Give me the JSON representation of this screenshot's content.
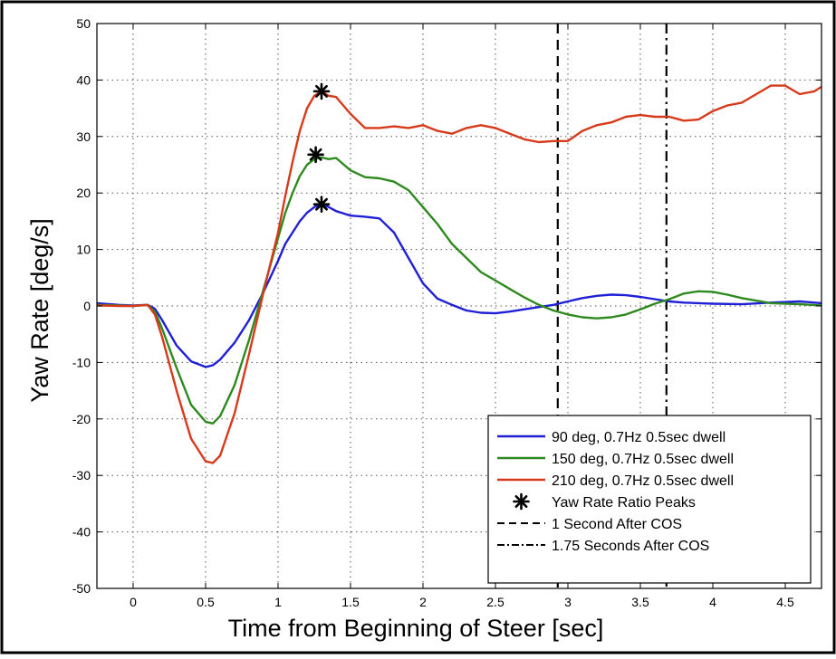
{
  "chart_data": {
    "type": "line",
    "title": "",
    "xlabel": "Time from Beginning of Steer [sec]",
    "ylabel": "Yaw Rate [deg/s]",
    "xlim": [
      -0.25,
      4.75
    ],
    "ylim": [
      -50,
      50
    ],
    "grid": true,
    "legend_position": "bottom-right",
    "x_ticks": [
      0,
      0.5,
      1,
      1.5,
      2,
      2.5,
      3,
      3.5,
      4,
      4.5
    ],
    "x_tick_labels": [
      "0",
      "0.5",
      "1",
      "1.5",
      "2",
      "2.5",
      "3",
      "3.5",
      "4",
      "4.5"
    ],
    "y_ticks": [
      -50,
      -40,
      -30,
      -20,
      -10,
      0,
      10,
      20,
      30,
      40,
      50
    ],
    "y_tick_labels": [
      "-50",
      "-40",
      "-30",
      "-20",
      "-10",
      "0",
      "10",
      "20",
      "30",
      "40",
      "50"
    ],
    "series": [
      {
        "name": "90 deg, 0.7Hz 0.5sec dwell",
        "color": "#1f1fd6",
        "x": [
          -0.25,
          -0.1,
          0.0,
          0.1,
          0.15,
          0.2,
          0.3,
          0.4,
          0.5,
          0.55,
          0.6,
          0.7,
          0.8,
          0.9,
          1.0,
          1.05,
          1.1,
          1.15,
          1.2,
          1.25,
          1.3,
          1.35,
          1.4,
          1.5,
          1.6,
          1.7,
          1.8,
          1.9,
          2.0,
          2.1,
          2.2,
          2.3,
          2.4,
          2.5,
          2.6,
          2.7,
          2.8,
          2.9,
          3.0,
          3.1,
          3.2,
          3.3,
          3.4,
          3.5,
          3.6,
          3.7,
          3.8,
          3.9,
          4.0,
          4.2,
          4.4,
          4.6,
          4.75
        ],
        "y": [
          0.5,
          0.2,
          0.1,
          0.2,
          -0.5,
          -2.5,
          -7,
          -9.8,
          -10.8,
          -10.5,
          -9.5,
          -6.5,
          -2.5,
          2.5,
          8,
          11,
          13,
          15,
          16.5,
          17.5,
          18,
          17.5,
          16.8,
          16,
          15.8,
          15.5,
          13,
          8.5,
          4,
          1.3,
          0.2,
          -0.8,
          -1.2,
          -1.3,
          -1,
          -0.6,
          -0.2,
          0.2,
          0.8,
          1.4,
          1.8,
          2.0,
          1.9,
          1.6,
          1.2,
          0.8,
          0.6,
          0.5,
          0.4,
          0.3,
          0.6,
          0.8,
          0.5
        ]
      },
      {
        "name": "150 deg, 0.7Hz 0.5sec dwell",
        "color": "#2e8a1e",
        "x": [
          -0.25,
          -0.1,
          0.0,
          0.1,
          0.15,
          0.2,
          0.3,
          0.4,
          0.5,
          0.55,
          0.6,
          0.7,
          0.8,
          0.9,
          1.0,
          1.05,
          1.1,
          1.15,
          1.2,
          1.25,
          1.3,
          1.35,
          1.4,
          1.5,
          1.6,
          1.7,
          1.8,
          1.9,
          2.0,
          2.1,
          2.2,
          2.3,
          2.4,
          2.5,
          2.6,
          2.7,
          2.8,
          2.9,
          3.0,
          3.1,
          3.2,
          3.3,
          3.4,
          3.5,
          3.6,
          3.7,
          3.8,
          3.9,
          4.0,
          4.1,
          4.2,
          4.4,
          4.6,
          4.75
        ],
        "y": [
          0.2,
          0.1,
          0.0,
          0.2,
          -1,
          -4,
          -11,
          -17.5,
          -20.5,
          -20.8,
          -19.5,
          -14,
          -6,
          3,
          12,
          16.5,
          20,
          23,
          25,
          26,
          26.3,
          26,
          26.2,
          24,
          22.8,
          22.6,
          22,
          20.5,
          17.5,
          14.5,
          11,
          8.5,
          6,
          4.5,
          3,
          1.5,
          0.2,
          -0.8,
          -1.5,
          -2,
          -2.2,
          -2,
          -1.5,
          -0.6,
          0.4,
          1.2,
          2.2,
          2.6,
          2.5,
          2.0,
          1.4,
          0.5,
          0.3,
          0.1
        ]
      },
      {
        "name": "210 deg, 0.7Hz 0.5sec dwell",
        "color": "#d63a1a",
        "x": [
          -0.25,
          -0.1,
          0.0,
          0.1,
          0.15,
          0.2,
          0.3,
          0.4,
          0.5,
          0.55,
          0.6,
          0.7,
          0.8,
          0.9,
          1.0,
          1.05,
          1.1,
          1.15,
          1.2,
          1.25,
          1.3,
          1.35,
          1.4,
          1.5,
          1.6,
          1.7,
          1.8,
          1.9,
          2.0,
          2.1,
          2.2,
          2.3,
          2.4,
          2.5,
          2.6,
          2.7,
          2.8,
          2.9,
          3.0,
          3.1,
          3.2,
          3.3,
          3.4,
          3.5,
          3.6,
          3.7,
          3.8,
          3.9,
          4.0,
          4.1,
          4.2,
          4.3,
          4.4,
          4.5,
          4.6,
          4.7,
          4.75
        ],
        "y": [
          0.1,
          0.0,
          0.0,
          0.2,
          -1.5,
          -5.5,
          -15,
          -23.5,
          -27.5,
          -27.8,
          -26.5,
          -19,
          -8.5,
          2.5,
          13,
          19.5,
          25.5,
          31,
          35,
          37.2,
          38,
          37.2,
          37,
          34,
          31.5,
          31.5,
          31.8,
          31.5,
          32,
          31,
          30.5,
          31.5,
          32,
          31.5,
          30.5,
          29.5,
          29,
          29.2,
          29.2,
          31,
          32,
          32.5,
          33.5,
          33.8,
          33.5,
          33.5,
          32.8,
          33,
          34.5,
          35.5,
          36,
          37.5,
          39,
          39,
          37.5,
          38,
          38.8
        ]
      }
    ],
    "peaks": [
      {
        "x": 1.3,
        "y": 38
      },
      {
        "x": 1.26,
        "y": 26.8
      },
      {
        "x": 1.3,
        "y": 18
      }
    ],
    "vlines": [
      {
        "x": 2.93,
        "style": "dashed"
      },
      {
        "x": 3.68,
        "style": "dashdot"
      }
    ],
    "legend": [
      {
        "label": "90 deg, 0.7Hz 0.5sec dwell",
        "kind": "line",
        "color": "#1f1fd6"
      },
      {
        "label": "150 deg, 0.7Hz 0.5sec dwell",
        "kind": "line",
        "color": "#2e8a1e"
      },
      {
        "label": "210 deg, 0.7Hz 0.5sec dwell",
        "kind": "line",
        "color": "#d63a1a"
      },
      {
        "label": "Yaw Rate Ratio Peaks",
        "kind": "star",
        "color": "#000000"
      },
      {
        "label": "1 Second After COS",
        "kind": "dashed",
        "color": "#000000"
      },
      {
        "label": "1.75 Seconds After COS",
        "kind": "dashdot",
        "color": "#000000"
      }
    ]
  }
}
